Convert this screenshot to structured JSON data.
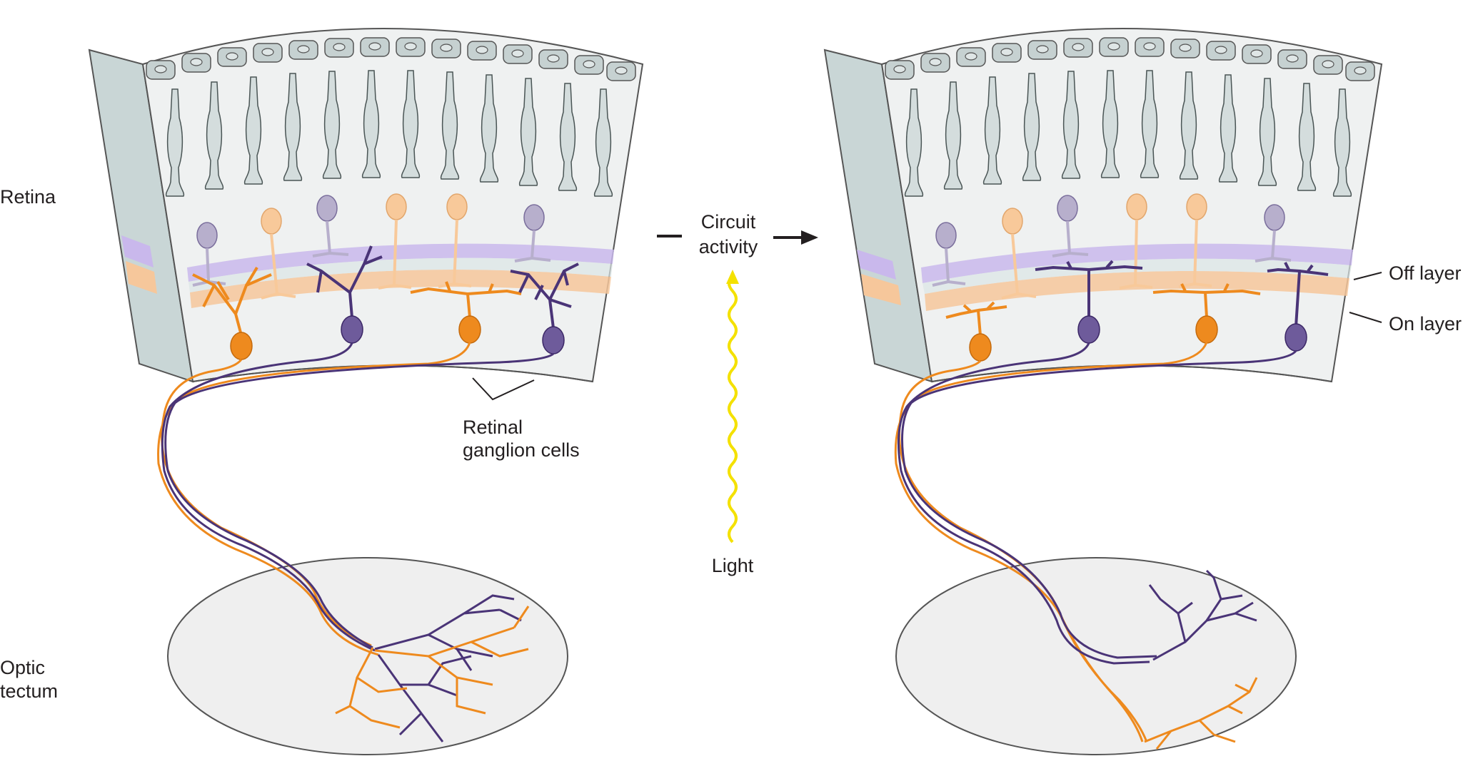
{
  "labels": {
    "retina": "Retina",
    "optic_tectum_line1": "Optic",
    "optic_tectum_line2": "tectum",
    "retinal_ganglion_cells_line1": "Retinal",
    "retinal_ganglion_cells_line2": "ganglion cells",
    "circuit_activity_line1": "Circuit",
    "circuit_activity_line2": "activity",
    "light": "Light",
    "off_layer": "Off layer",
    "on_layer": "On layer"
  },
  "colors": {
    "on_cell": "#ee8a1e",
    "off_cell": "#4a3477",
    "on_cell_light": "#f8c99a",
    "off_cell_light": "#b7afcc",
    "off_band": "#c9b8ec",
    "on_band": "#f6c79b",
    "retina_fill": "#eff1f1",
    "retina_side": "#c9d6d6",
    "photoreceptor": "#d4dddd",
    "tectum_fill": "#efefef",
    "light_wave": "#f4e100",
    "outline": "#3c3c3c"
  }
}
